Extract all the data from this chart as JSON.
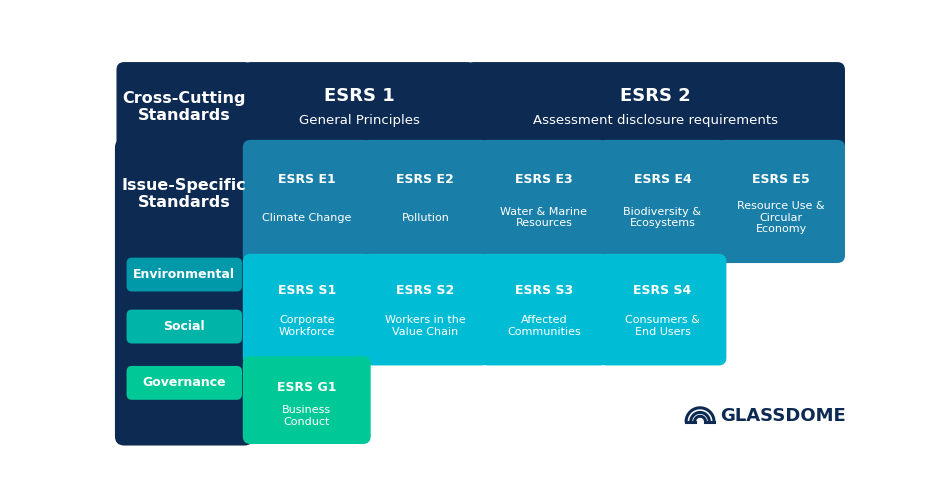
{
  "bg_color": "#ffffff",
  "dark_navy": "#0d2a52",
  "e_box_color": "#1a7fa8",
  "s_box_color": "#00bcd4",
  "g_box_color": "#00c896",
  "env_color": "#0099aa",
  "soc_color": "#00b4a8",
  "gov_color": "#00c896",
  "cross_cutting": {
    "label": "Cross-Cutting\nStandards"
  },
  "esrs1": {
    "title": "ESRS 1",
    "subtitle": "General Principles"
  },
  "esrs2": {
    "title": "ESRS 2",
    "subtitle": "Assessment disclosure requirements"
  },
  "issue_specific": {
    "label": "Issue-Specific\nStandards"
  },
  "env_label": "Environmental",
  "soc_label": "Social",
  "gov_label": "Governance",
  "e_standards": [
    {
      "title": "ESRS E1",
      "subtitle": "Climate Change"
    },
    {
      "title": "ESRS E2",
      "subtitle": "Pollution"
    },
    {
      "title": "ESRS E3",
      "subtitle": "Water & Marine\nResources"
    },
    {
      "title": "ESRS E4",
      "subtitle": "Biodiversity &\nEcosystems"
    },
    {
      "title": "ESRS E5",
      "subtitle": "Resource Use &\nCircular\nEconomy"
    }
  ],
  "s_standards": [
    {
      "title": "ESRS S1",
      "subtitle": "Corporate\nWorkforce"
    },
    {
      "title": "ESRS S2",
      "subtitle": "Workers in the\nValue Chain"
    },
    {
      "title": "ESRS S3",
      "subtitle": "Affected\nCommunities"
    },
    {
      "title": "ESRS S4",
      "subtitle": "Consumers &\nEnd Users"
    }
  ],
  "g_standards": [
    {
      "title": "ESRS G1",
      "subtitle": "Business\nConduct"
    }
  ],
  "logo_text": "GLASSDOME"
}
